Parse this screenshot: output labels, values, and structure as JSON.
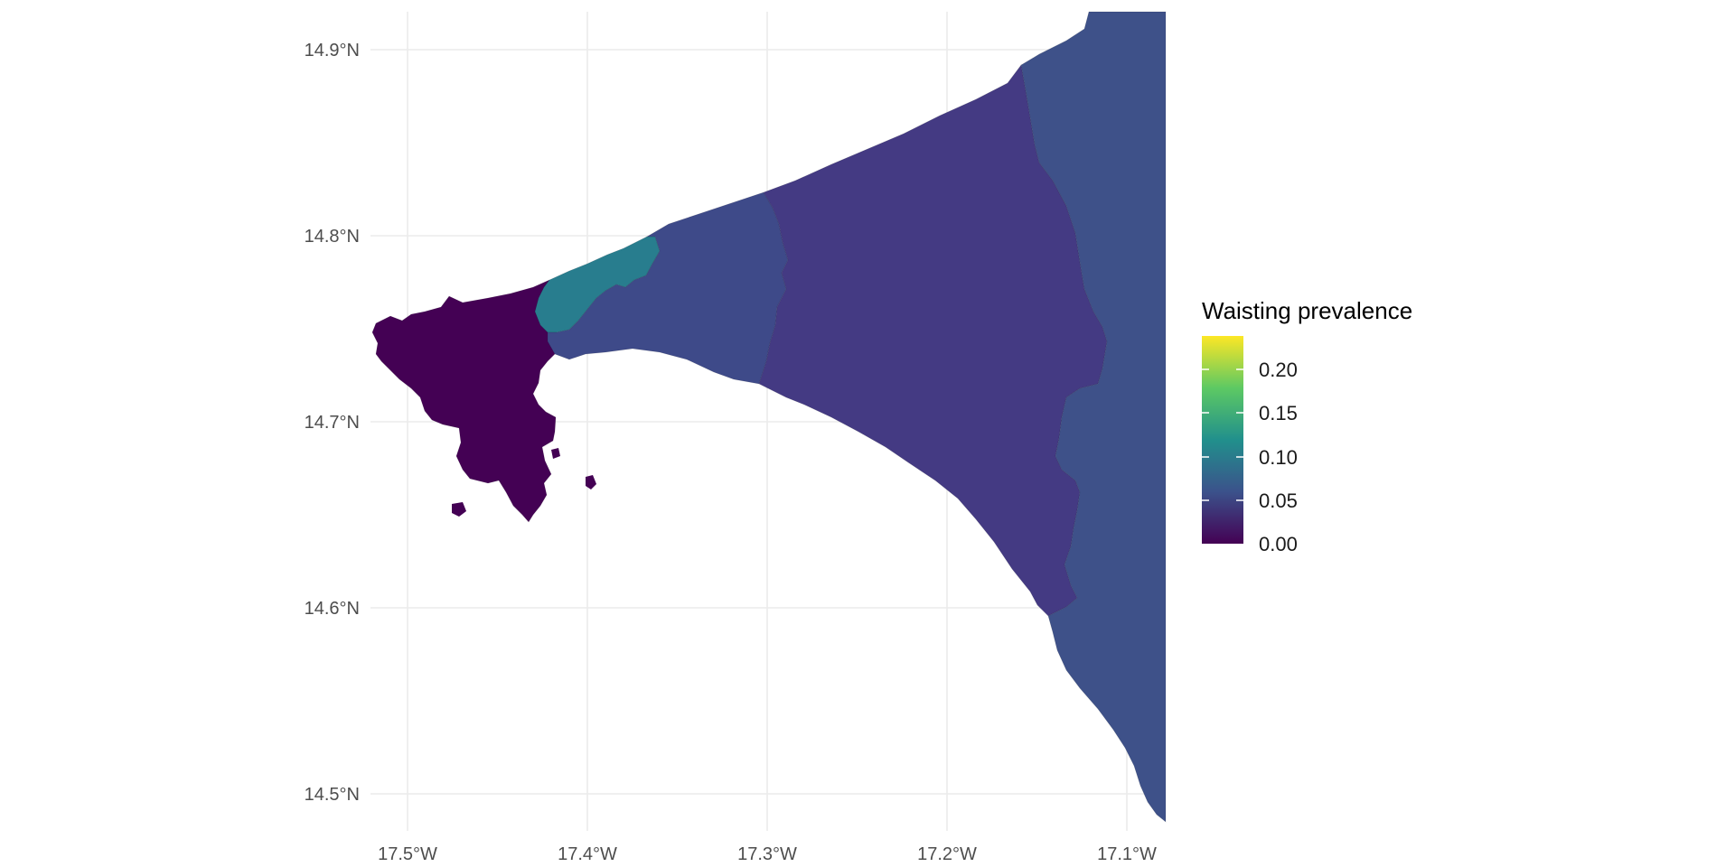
{
  "map": {
    "x_ticks": [
      "17.5°W",
      "17.4°W",
      "17.3°W",
      "17.2°W",
      "17.1°W"
    ],
    "y_ticks": [
      "14.9°N",
      "14.8°N",
      "14.7°N",
      "14.6°N",
      "14.5°N"
    ],
    "regions": [
      {
        "id": "dakar-west",
        "value": 0.0,
        "color": "#440154"
      },
      {
        "id": "pikine-north",
        "value": 0.1,
        "color": "#287D8E"
      },
      {
        "id": "pikine-south",
        "value": 0.06,
        "color": "#3E4A89"
      },
      {
        "id": "guediawaye-rufisque",
        "value": 0.04,
        "color": "#443A83"
      },
      {
        "id": "east",
        "value": 0.06,
        "color": "#3E5189"
      }
    ]
  },
  "legend": {
    "title": "Waisting prevalence",
    "labels": [
      "0.20",
      "0.15",
      "0.10",
      "0.05",
      "0.00"
    ],
    "colors": [
      "#440154",
      "#3B528B",
      "#21908C",
      "#5DC963",
      "#FDE725"
    ]
  }
}
